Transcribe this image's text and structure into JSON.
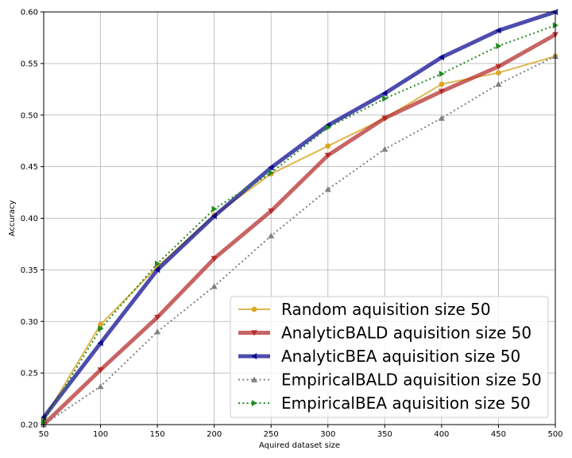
{
  "chart_data": {
    "type": "line",
    "title": "",
    "xlabel": "Aquired dataset size",
    "ylabel": "Accuracy",
    "xlim": [
      50,
      500
    ],
    "ylim": [
      0.2,
      0.6
    ],
    "xticks": [
      50,
      100,
      150,
      200,
      250,
      300,
      350,
      400,
      450,
      500
    ],
    "yticks": [
      0.2,
      0.25,
      0.3,
      0.35,
      0.4,
      0.45,
      0.5,
      0.55,
      0.6
    ],
    "xtick_labels": [
      "50",
      "100",
      "150",
      "200",
      "250",
      "300",
      "350",
      "400",
      "450",
      "500"
    ],
    "ytick_labels": [
      "0.20",
      "0.25",
      "0.30",
      "0.35",
      "0.40",
      "0.45",
      "0.50",
      "0.55",
      "0.60"
    ],
    "grid": true,
    "legend_position": "bottom-right",
    "x": [
      50,
      100,
      150,
      200,
      250,
      300,
      350,
      400,
      450,
      500
    ],
    "series": [
      {
        "name": "Random aquisition size 50",
        "color": "#DAA520",
        "style": "solid",
        "marker": "circle",
        "lineWidth": 2,
        "alpha": 0.8,
        "values": [
          0.205,
          0.297,
          0.353,
          0.403,
          0.443,
          0.47,
          0.497,
          0.53,
          0.541,
          0.557
        ]
      },
      {
        "name": "AnalyticBALD aquisition size 50",
        "color": "#B22222",
        "style": "solid",
        "marker": "triangle-down",
        "lineWidth": 5,
        "alpha": 0.7,
        "values": [
          0.2,
          0.253,
          0.304,
          0.361,
          0.407,
          0.461,
          0.497,
          0.523,
          0.547,
          0.578
        ]
      },
      {
        "name": "AnalyticBEA aquisition size 50",
        "color": "#00008B",
        "style": "solid",
        "marker": "triangle-left",
        "lineWidth": 5,
        "alpha": 0.7,
        "values": [
          0.207,
          0.279,
          0.35,
          0.402,
          0.449,
          0.49,
          0.521,
          0.556,
          0.582,
          0.6
        ]
      },
      {
        "name": "EmpiricalBALD aquisition size 50",
        "color": "#808080",
        "style": "dotted",
        "marker": "triangle-up",
        "lineWidth": 2,
        "alpha": 1.0,
        "values": [
          0.2,
          0.237,
          0.29,
          0.334,
          0.383,
          0.428,
          0.467,
          0.497,
          0.53,
          0.557
        ]
      },
      {
        "name": "EmpiricalBEA aquisition size 50",
        "color": "#228B22",
        "style": "dotted",
        "marker": "triangle-right",
        "lineWidth": 2,
        "alpha": 1.0,
        "values": [
          0.203,
          0.293,
          0.356,
          0.409,
          0.444,
          0.488,
          0.516,
          0.54,
          0.567,
          0.587
        ]
      }
    ]
  }
}
